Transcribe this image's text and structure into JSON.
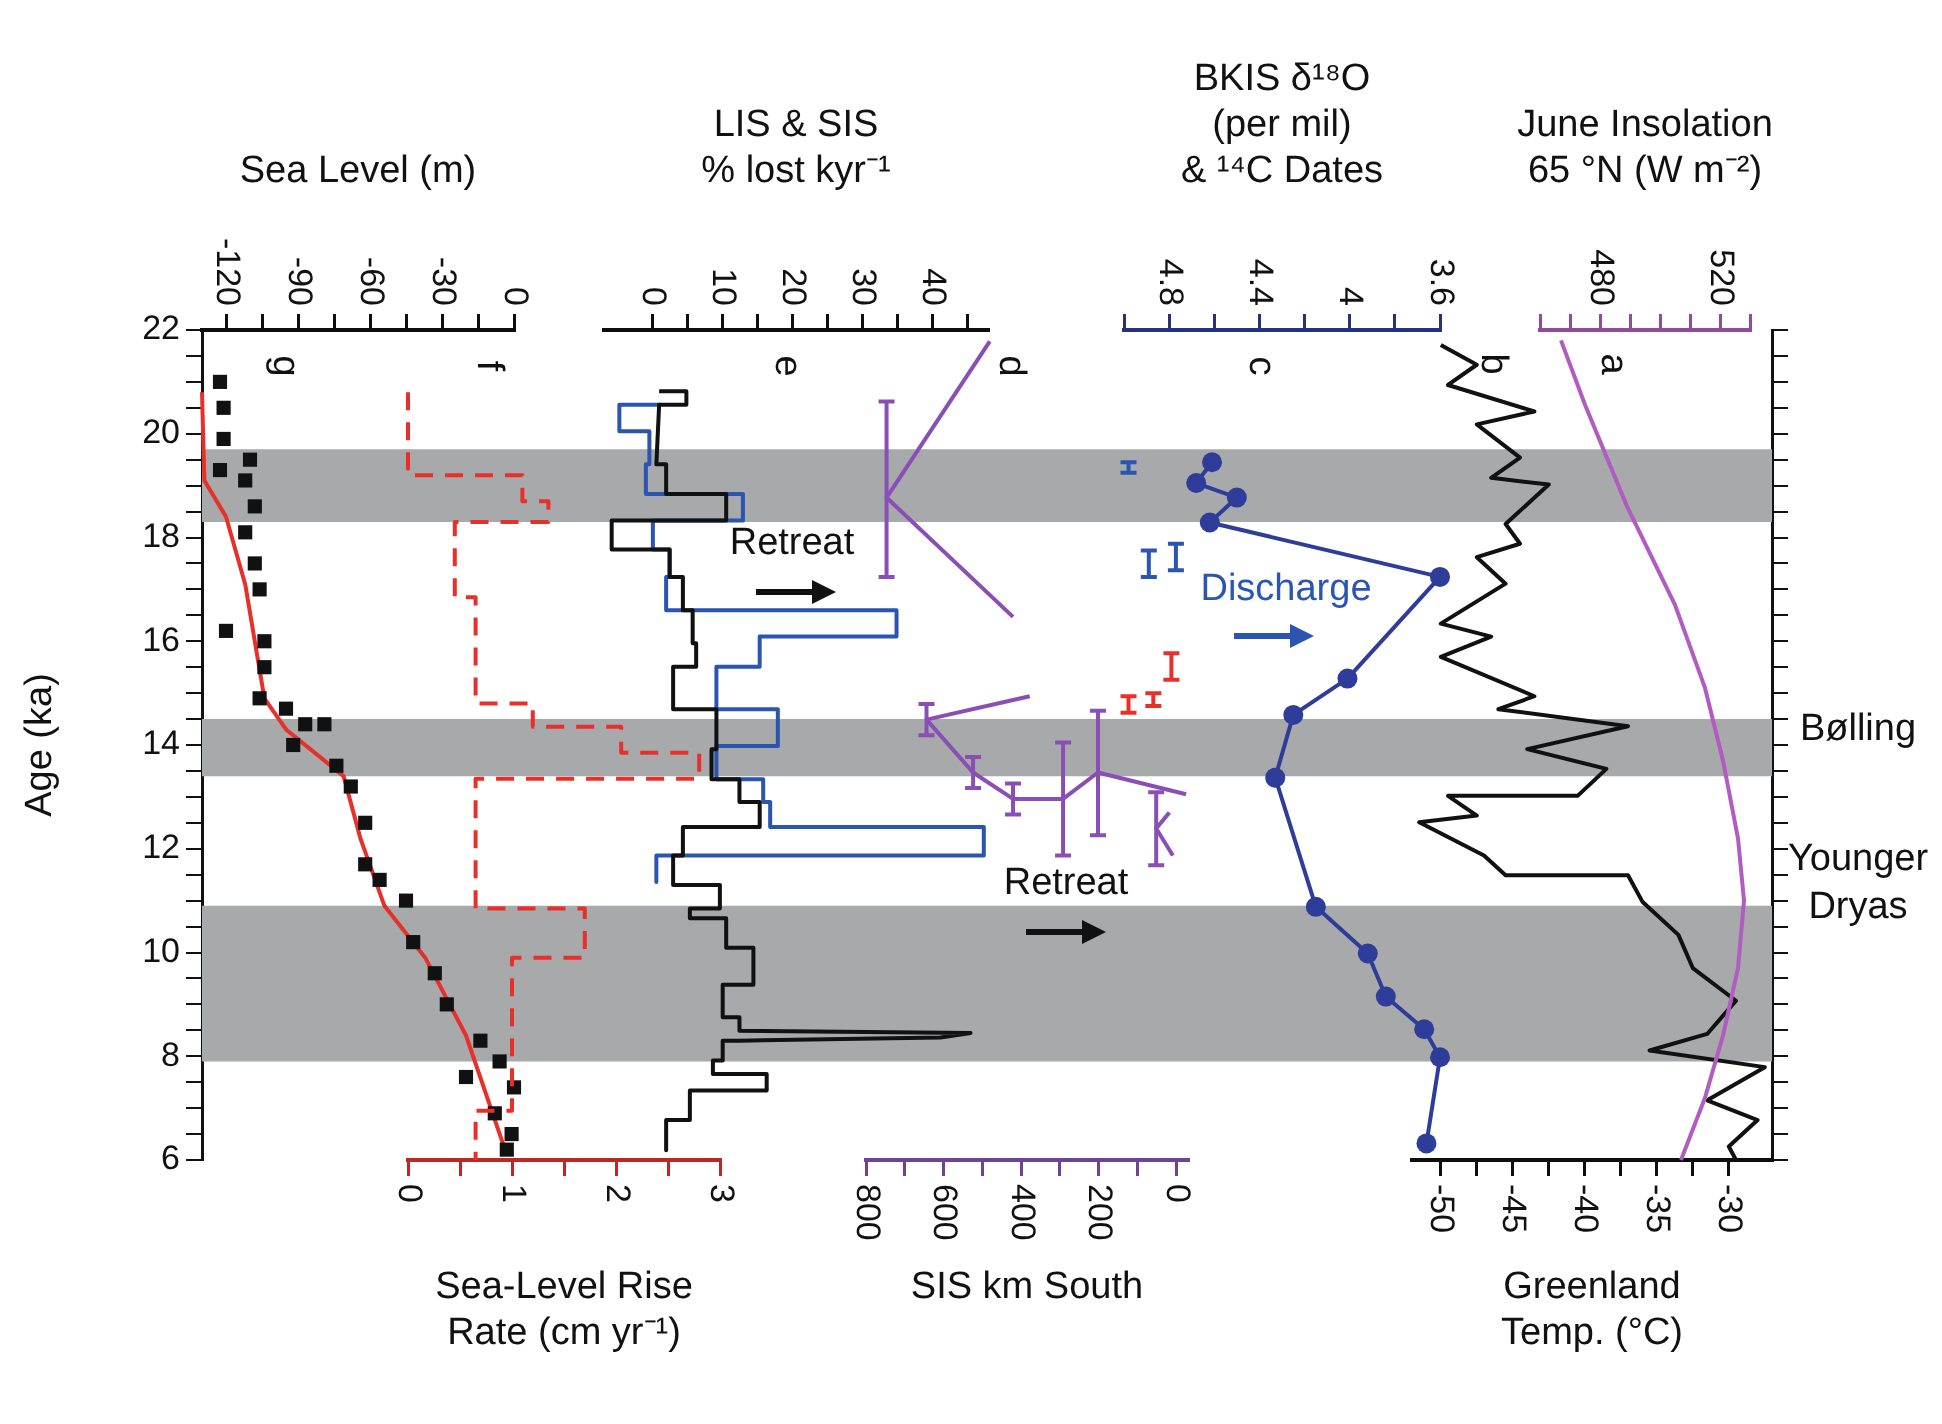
{
  "chart_data": [
    {
      "type": "scatter",
      "xlabel": "Sea Level (m)",
      "xlim": [
        -130,
        0
      ],
      "xticks": [
        -120,
        {
          "value": -105,
          "label": null
        },
        -90,
        {
          "value": -75,
          "label": null
        },
        -60,
        {
          "value": -45,
          "label": null
        },
        -30,
        {
          "value": -15,
          "label": null
        },
        0
      ],
      "ylabel": "Age (ka)",
      "ylim": [
        6,
        22
      ],
      "yticks": [
        6,
        {
          "value": 6.5,
          "label": null
        },
        {
          "value": 7,
          "label": null
        },
        {
          "value": 7.5,
          "label": null
        },
        8,
        {
          "value": 8.5,
          "label": null
        },
        {
          "value": 9,
          "label": null
        },
        {
          "value": 9.5,
          "label": null
        },
        10,
        {
          "value": 10.5,
          "label": null
        },
        {
          "value": 11,
          "label": null
        },
        {
          "value": 11.5,
          "label": null
        },
        12,
        {
          "value": 12.5,
          "label": null
        },
        {
          "value": 13,
          "label": null
        },
        {
          "value": 13.5,
          "label": null
        },
        14,
        {
          "value": 14.5,
          "label": null
        },
        {
          "value": 15,
          "label": null
        },
        {
          "value": 15.5,
          "label": null
        },
        16,
        {
          "value": 16.5,
          "label": null
        },
        {
          "value": 17,
          "label": null
        },
        {
          "value": 17.5,
          "label": null
        },
        18,
        {
          "value": 18.5,
          "label": null
        },
        {
          "value": 19,
          "label": null
        },
        {
          "value": 19.5,
          "label": null
        },
        20,
        {
          "value": 20.5,
          "label": null
        },
        {
          "value": 21,
          "label": null
        },
        {
          "value": 21.5,
          "label": null
        },
        22
      ],
      "bands": [
        {
          "axis": "y",
          "from": 18.3,
          "to": 19.7,
          "color": "#a7a9ab"
        },
        {
          "axis": "y",
          "from": 13.4,
          "to": 14.5,
          "color": "#a7a9ab"
        },
        {
          "axis": "y",
          "from": 7.9,
          "to": 10.9,
          "color": "#a7a9ab"
        }
      ],
      "annotations": [
        "g"
      ],
      "series": [
        {
          "marker": "square",
          "color": "#111111",
          "x": [
            -122.5,
            -121,
            -121,
            -122.5,
            -110,
            -112,
            -108,
            -112,
            -108,
            -106,
            -120,
            -104,
            -104,
            -106,
            -95,
            -87,
            -79,
            -92,
            -74,
            -68,
            -62,
            -62,
            -56,
            -45,
            -42,
            -33,
            -28,
            -14,
            -6,
            -20,
            0,
            -8,
            -1,
            -3
          ],
          "values": [
            21.0,
            20.5,
            19.9,
            19.3,
            19.5,
            19.1,
            18.6,
            18.1,
            17.5,
            17.0,
            16.2,
            16.0,
            15.5,
            14.9,
            14.7,
            14.4,
            14.4,
            14.0,
            13.6,
            13.2,
            12.5,
            11.7,
            11.4,
            11.0,
            10.2,
            9.6,
            9.0,
            8.3,
            7.9,
            7.6,
            7.4,
            6.9,
            6.5,
            6.2
          ]
        },
        {
          "type": "line",
          "marker": "none",
          "color": "#e8302b",
          "x": [
            -130,
            -129,
            -120,
            -112,
            -104,
            -95,
            -71,
            -64,
            -54,
            -37,
            -20,
            -3
          ],
          "values": [
            20.8,
            19.1,
            18.4,
            17.1,
            14.9,
            14.3,
            13.4,
            12.2,
            10.9,
            9.9,
            8.4,
            6.1
          ]
        }
      ]
    },
    {
      "type": "line",
      "xlabel": "Sea-Level Rise\nRate (cm yr⁻¹)",
      "xlim": [
        0,
        3
      ],
      "xticks": [
        0,
        {
          "value": 0.5,
          "label": null
        },
        1,
        {
          "value": 1.5,
          "label": null
        },
        2,
        {
          "value": 2.5,
          "label": null
        },
        3
      ],
      "ylim": [
        6,
        22
      ],
      "tick_labels": "x",
      "annotations": [
        "f"
      ],
      "marker": "none",
      "series": [
        {
          "line_style": "dashed",
          "color": "#e8302b",
          "x": [
            0,
            0,
            1.1,
            1.1,
            1.35,
            1.35,
            0.45,
            0.45,
            0.65,
            0.65,
            1.2,
            1.2,
            2.05,
            2.05,
            2.8,
            2.8,
            0.65,
            0.65,
            1.7,
            1.7,
            1.0,
            1.0,
            0.65,
            0.65
          ],
          "values": [
            20.8,
            19.2,
            19.2,
            18.7,
            18.7,
            18.3,
            18.3,
            16.85,
            16.85,
            14.8,
            14.8,
            14.35,
            14.35,
            13.85,
            13.85,
            13.35,
            13.35,
            10.85,
            10.85,
            9.9,
            9.9,
            6.95,
            6.95,
            6.0
          ]
        }
      ]
    },
    {
      "type": "line",
      "xlabel": "LIS & SIS\n% lost kyr⁻¹",
      "xlim": [
        -7,
        48
      ],
      "xticks": [
        0,
        {
          "value": 5,
          "label": null
        },
        10,
        {
          "value": 15,
          "label": null
        },
        20,
        {
          "value": 25,
          "label": null
        },
        30,
        {
          "value": 35,
          "label": null
        },
        40,
        {
          "value": 45,
          "label": null
        }
      ],
      "ylim": [
        6,
        22
      ],
      "tick_labels": "x",
      "annotations": [
        "e",
        "Retreat"
      ],
      "marker": "none",
      "series": [
        {
          "color": "#111111",
          "x": [
            0.9,
            4.8,
            4.8,
            0.9,
            0.5,
            1.9,
            1.9,
            10.5,
            10.5,
            -5.9,
            -5.9,
            2.4,
            2.4,
            4.3,
            4.3,
            5.7,
            5.7,
            6.2,
            6.2,
            2.9,
            2.9,
            9.1,
            9.1,
            8.4,
            8.4,
            12.4,
            12.4,
            15.3,
            15.3,
            4.3,
            4.3,
            2.9,
            2.9,
            9.6,
            9.6,
            5.3,
            5.3,
            10.5,
            10.5,
            14.4,
            14.4,
            10,
            10,
            12.4,
            12.4,
            45.5,
            41.2,
            12.4,
            10,
            10,
            8.6,
            8.6,
            16.3,
            16.3,
            5.3,
            5.3,
            1.9,
            1.9
          ],
          "values": [
            20.82,
            20.82,
            20.56,
            20.56,
            19.41,
            19.41,
            18.84,
            18.84,
            18.33,
            18.33,
            17.77,
            17.77,
            17.24,
            17.24,
            16.6,
            16.6,
            15.96,
            15.96,
            15.51,
            15.51,
            14.69,
            14.69,
            13.92,
            13.92,
            13.34,
            13.34,
            12.9,
            12.9,
            12.42,
            12.42,
            11.87,
            11.87,
            11.3,
            11.3,
            10.85,
            10.85,
            10.66,
            10.66,
            10.09,
            10.09,
            9.38,
            9.38,
            8.75,
            8.75,
            8.49,
            8.45,
            8.36,
            8.3,
            8.3,
            7.92,
            7.92,
            7.66,
            7.66,
            7.34,
            7.34,
            6.77,
            6.77,
            6.19
          ]
        },
        {
          "color": "#2a55b0",
          "x": [
            1,
            -4.8,
            -4.8,
            -0.5,
            -0.5,
            -1,
            -1,
            12.9,
            12.9,
            0,
            0,
            2.4,
            2.4,
            1.9,
            1.9,
            34.9,
            34.9,
            15.3,
            15.3,
            9.1,
            9.1,
            17.9,
            17.9,
            9.1,
            9.1,
            15.8,
            15.8,
            16.8,
            16.8,
            47.4,
            47.4,
            0.5,
            0.5
          ],
          "values": [
            20.56,
            20.56,
            20.05,
            20.05,
            19.41,
            19.41,
            18.84,
            18.84,
            18.33,
            18.33,
            17.77,
            17.77,
            17.24,
            17.24,
            16.6,
            16.6,
            16.09,
            16.09,
            15.51,
            15.51,
            14.69,
            14.69,
            13.98,
            13.98,
            13.34,
            13.34,
            12.9,
            12.9,
            12.42,
            12.42,
            11.87,
            11.87,
            11.36
          ]
        }
      ]
    },
    {
      "type": "line",
      "xlabel": "SIS km South",
      "xlim": [
        800,
        -30
      ],
      "xticks": [
        800,
        {
          "value": 700,
          "label": null
        },
        600,
        {
          "value": 500,
          "label": null
        },
        400,
        {
          "value": 300,
          "label": null
        },
        200,
        {
          "value": 100,
          "label": null
        },
        0
      ],
      "ylim": [
        6,
        22
      ],
      "tick_labels": "x",
      "annotations": [
        "d",
        "Retreat"
      ],
      "marker": "none",
      "series": [
        {
          "color": "#8a4fb5",
          "x": [
            481,
            747,
            421
          ],
          "values": [
            21.78,
            18.77,
            16.47
          ],
          "errors": [
            null,
            [
              17.24,
              20.62
            ],
            null
          ]
        },
        {
          "color": "#8a4fb5",
          "x": [
            378,
            644,
            524,
            421,
            292,
            202,
            -25
          ],
          "values": [
            14.94,
            14.49,
            13.47,
            12.96,
            12.96,
            13.47,
            13.05
          ],
          "errors": [
            null,
            0.3,
            0.3,
            0.3,
            [
              11.87,
              14.05
            ],
            [
              12.26,
              14.66
            ],
            null
          ]
        },
        {
          "color": "#8a4fb5",
          "x": [
            18,
            52,
            9
          ],
          "values": [
            12.7,
            12.39,
            11.87
          ],
          "errors": [
            null,
            [
              11.68,
              13.09
            ],
            null
          ]
        }
      ]
    },
    {
      "type": "line",
      "xlabel": "BKIS δ¹⁸O\n(per mil)\n& ¹⁴C Dates",
      "xlim": [
        5,
        3.6
      ],
      "xticks": [
        {
          "value": 5,
          "label": null
        },
        4.8,
        {
          "value": 4.6,
          "label": null
        },
        4.4,
        {
          "value": 4.2,
          "label": null
        },
        4,
        {
          "value": 3.8,
          "label": null
        },
        3.6
      ],
      "ylim": [
        6,
        22
      ],
      "tick_labels": "x",
      "annotations": [
        "c",
        "Discharge"
      ],
      "series": [
        {
          "marker": "circle",
          "color": "#2e3d99",
          "x": [
            4.61,
            4.68,
            4.5,
            4.62,
            3.6,
            4.01,
            4.25,
            4.33,
            4.15,
            3.92,
            3.84,
            3.67,
            3.6,
            3.66
          ],
          "values": [
            19.45,
            19.05,
            18.77,
            18.29,
            17.24,
            15.28,
            14.58,
            13.37,
            10.88,
            9.98,
            9.15,
            8.52,
            7.98,
            6.32
          ]
        },
        {
          "type": "scatter",
          "color": "#e8302b",
          "x": [
            4.79,
            4.87,
            4.98
          ],
          "values": [
            15.5,
            14.88,
            14.78
          ],
          "errors": [
            [
              15.26,
              15.77
            ],
            [
              14.75,
              15.0
            ],
            [
              14.62,
              14.94
            ]
          ]
        },
        {
          "type": "scatter",
          "color": "#2a55b0",
          "x": [
            4.98,
            4.89,
            4.77
          ],
          "values": [
            19.35,
            17.5,
            17.62
          ],
          "errors": [
            [
              19.25,
              19.45
            ],
            [
              17.24,
              17.75
            ],
            [
              17.37,
              17.88
            ]
          ]
        }
      ]
    },
    {
      "type": "line",
      "xlabel": "Greenland\nTemp. (°C)",
      "xlim": [
        -52,
        -27
      ],
      "xticks": [
        -50,
        {
          "value": -47.5,
          "label": null
        },
        -45,
        {
          "value": -42.5,
          "label": null
        },
        -40,
        {
          "value": -37.5,
          "label": null
        },
        -35,
        {
          "value": -32.5,
          "label": null
        },
        -30
      ],
      "ylim": [
        6,
        22
      ],
      "tick_labels": "x",
      "annotations": [
        "b",
        "Bølling",
        "Younger Dryas"
      ],
      "marker": "none",
      "series": [
        {
          "color": "#111111",
          "x": [
            -50,
            -47.5,
            -49.5,
            -43.5,
            -47.5,
            -44.5,
            -46.5,
            -42.5,
            -45.5,
            -44.5,
            -47.5,
            -45.5,
            -50,
            -46.5,
            -50,
            -43.5,
            -46,
            -37,
            -44,
            -38.5,
            -40.5,
            -49.5,
            -47.5,
            -51.5,
            -47,
            -45.5,
            -37,
            -36,
            -33.5,
            -32.5,
            -29.5,
            -31.5,
            -35.5,
            -27.5,
            -31.5,
            -28,
            -30,
            -29.5
          ],
          "values": [
            21.71,
            21.33,
            20.94,
            20.43,
            20.18,
            19.54,
            19.15,
            19.02,
            18.26,
            17.88,
            17.62,
            17.11,
            16.34,
            16.09,
            15.7,
            14.94,
            14.69,
            14.36,
            13.92,
            13.54,
            13.02,
            13.02,
            12.64,
            12.51,
            11.87,
            11.49,
            11.49,
            10.98,
            10.34,
            9.7,
            9.07,
            8.43,
            8.11,
            7.79,
            7.15,
            6.77,
            6.26,
            6.0
          ]
        }
      ]
    },
    {
      "type": "line",
      "xlabel": "June Insolation\n65 °N (W m⁻²)",
      "xlim": [
        460,
        530
      ],
      "xticks": [
        {
          "value": 460,
          "label": null
        },
        {
          "value": 470,
          "label": null
        },
        480,
        {
          "value": 490,
          "label": null
        },
        {
          "value": 500,
          "label": null
        },
        {
          "value": 510,
          "label": null
        },
        520,
        {
          "value": 530,
          "label": null
        }
      ],
      "ylim": [
        6,
        22
      ],
      "tick_labels": "x",
      "annotations": [
        "a"
      ],
      "marker": "none",
      "series": [
        {
          "color": "#b05cc0",
          "x": [
            467,
            475,
            489,
            505,
            515,
            521,
            526,
            528,
            526,
            521,
            515,
            507
          ],
          "values": [
            21.8,
            20.56,
            18.6,
            16.7,
            15.1,
            13.7,
            12.2,
            11.0,
            9.7,
            8.4,
            7.2,
            6.0
          ]
        }
      ]
    }
  ]
}
